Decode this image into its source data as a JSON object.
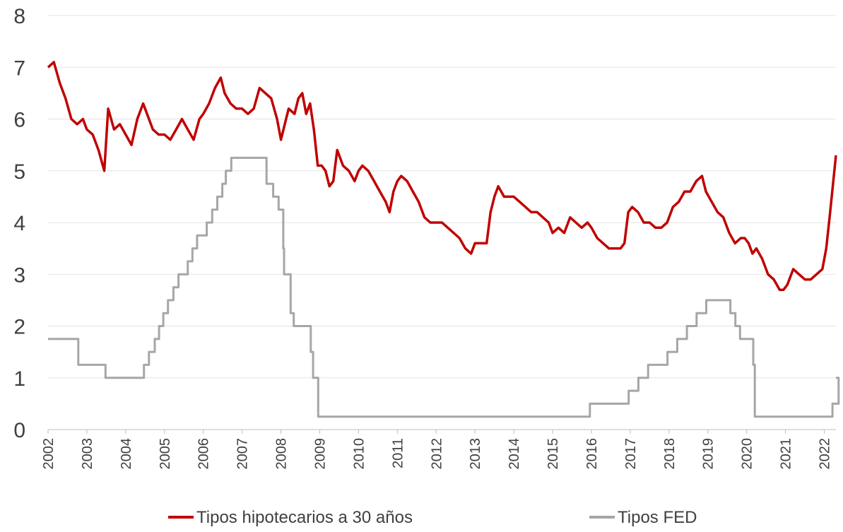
{
  "chart_data": {
    "type": "line",
    "title": "",
    "xlabel": "",
    "ylabel": "",
    "ylim": [
      0,
      8
    ],
    "yticks": [
      "0",
      "1",
      "2",
      "3",
      "4",
      "5",
      "6",
      "7",
      "8"
    ],
    "xlim": [
      2002,
      2022.3
    ],
    "xticks": [
      "2002",
      "2003",
      "2004",
      "2005",
      "2006",
      "2007",
      "2008",
      "2009",
      "2010",
      "2011",
      "2012",
      "2013",
      "2014",
      "2015",
      "2016",
      "2017",
      "2018",
      "2019",
      "2020",
      "2021",
      "2022"
    ],
    "grid": "horizontal",
    "legend": "bottom",
    "series": [
      {
        "name": "Tipos hipotecarios a  30 años",
        "color": "#c00000",
        "points": [
          [
            2002.0,
            7.0
          ],
          [
            2002.15,
            7.1
          ],
          [
            2002.3,
            6.7
          ],
          [
            2002.45,
            6.4
          ],
          [
            2002.6,
            6.0
          ],
          [
            2002.75,
            5.9
          ],
          [
            2002.9,
            6.0
          ],
          [
            2003.0,
            5.8
          ],
          [
            2003.15,
            5.7
          ],
          [
            2003.3,
            5.4
          ],
          [
            2003.45,
            5.0
          ],
          [
            2003.55,
            6.2
          ],
          [
            2003.7,
            5.8
          ],
          [
            2003.85,
            5.9
          ],
          [
            2004.0,
            5.7
          ],
          [
            2004.15,
            5.5
          ],
          [
            2004.3,
            6.0
          ],
          [
            2004.45,
            6.3
          ],
          [
            2004.55,
            6.1
          ],
          [
            2004.7,
            5.8
          ],
          [
            2004.85,
            5.7
          ],
          [
            2005.0,
            5.7
          ],
          [
            2005.15,
            5.6
          ],
          [
            2005.3,
            5.8
          ],
          [
            2005.45,
            6.0
          ],
          [
            2005.6,
            5.8
          ],
          [
            2005.75,
            5.6
          ],
          [
            2005.9,
            6.0
          ],
          [
            2006.0,
            6.1
          ],
          [
            2006.15,
            6.3
          ],
          [
            2006.3,
            6.6
          ],
          [
            2006.45,
            6.8
          ],
          [
            2006.55,
            6.5
          ],
          [
            2006.7,
            6.3
          ],
          [
            2006.85,
            6.2
          ],
          [
            2007.0,
            6.2
          ],
          [
            2007.15,
            6.1
          ],
          [
            2007.3,
            6.2
          ],
          [
            2007.45,
            6.6
          ],
          [
            2007.6,
            6.5
          ],
          [
            2007.75,
            6.4
          ],
          [
            2007.9,
            6.0
          ],
          [
            2008.0,
            5.6
          ],
          [
            2008.1,
            5.9
          ],
          [
            2008.2,
            6.2
          ],
          [
            2008.35,
            6.1
          ],
          [
            2008.45,
            6.4
          ],
          [
            2008.55,
            6.5
          ],
          [
            2008.65,
            6.1
          ],
          [
            2008.75,
            6.3
          ],
          [
            2008.85,
            5.8
          ],
          [
            2008.95,
            5.1
          ],
          [
            2009.05,
            5.1
          ],
          [
            2009.15,
            5.0
          ],
          [
            2009.25,
            4.7
          ],
          [
            2009.35,
            4.8
          ],
          [
            2009.45,
            5.4
          ],
          [
            2009.6,
            5.1
          ],
          [
            2009.75,
            5.0
          ],
          [
            2009.9,
            4.8
          ],
          [
            2010.0,
            5.0
          ],
          [
            2010.1,
            5.1
          ],
          [
            2010.25,
            5.0
          ],
          [
            2010.4,
            4.8
          ],
          [
            2010.55,
            4.6
          ],
          [
            2010.7,
            4.4
          ],
          [
            2010.8,
            4.2
          ],
          [
            2010.9,
            4.6
          ],
          [
            2011.0,
            4.8
          ],
          [
            2011.1,
            4.9
          ],
          [
            2011.25,
            4.8
          ],
          [
            2011.4,
            4.6
          ],
          [
            2011.55,
            4.4
          ],
          [
            2011.7,
            4.1
          ],
          [
            2011.85,
            4.0
          ],
          [
            2012.0,
            4.0
          ],
          [
            2012.15,
            4.0
          ],
          [
            2012.3,
            3.9
          ],
          [
            2012.45,
            3.8
          ],
          [
            2012.6,
            3.7
          ],
          [
            2012.75,
            3.5
          ],
          [
            2012.9,
            3.4
          ],
          [
            2013.0,
            3.6
          ],
          [
            2013.15,
            3.6
          ],
          [
            2013.3,
            3.6
          ],
          [
            2013.4,
            4.2
          ],
          [
            2013.5,
            4.5
          ],
          [
            2013.6,
            4.7
          ],
          [
            2013.75,
            4.5
          ],
          [
            2013.9,
            4.5
          ],
          [
            2014.0,
            4.5
          ],
          [
            2014.15,
            4.4
          ],
          [
            2014.3,
            4.3
          ],
          [
            2014.45,
            4.2
          ],
          [
            2014.6,
            4.2
          ],
          [
            2014.75,
            4.1
          ],
          [
            2014.9,
            4.0
          ],
          [
            2015.0,
            3.8
          ],
          [
            2015.15,
            3.9
          ],
          [
            2015.3,
            3.8
          ],
          [
            2015.45,
            4.1
          ],
          [
            2015.6,
            4.0
          ],
          [
            2015.75,
            3.9
          ],
          [
            2015.9,
            4.0
          ],
          [
            2016.0,
            3.9
          ],
          [
            2016.15,
            3.7
          ],
          [
            2016.3,
            3.6
          ],
          [
            2016.45,
            3.5
          ],
          [
            2016.6,
            3.5
          ],
          [
            2016.75,
            3.5
          ],
          [
            2016.85,
            3.6
          ],
          [
            2016.95,
            4.2
          ],
          [
            2017.05,
            4.3
          ],
          [
            2017.2,
            4.2
          ],
          [
            2017.35,
            4.0
          ],
          [
            2017.5,
            4.0
          ],
          [
            2017.65,
            3.9
          ],
          [
            2017.8,
            3.9
          ],
          [
            2017.95,
            4.0
          ],
          [
            2018.1,
            4.3
          ],
          [
            2018.25,
            4.4
          ],
          [
            2018.4,
            4.6
          ],
          [
            2018.55,
            4.6
          ],
          [
            2018.7,
            4.8
          ],
          [
            2018.85,
            4.9
          ],
          [
            2018.95,
            4.6
          ],
          [
            2019.1,
            4.4
          ],
          [
            2019.25,
            4.2
          ],
          [
            2019.4,
            4.1
          ],
          [
            2019.55,
            3.8
          ],
          [
            2019.7,
            3.6
          ],
          [
            2019.85,
            3.7
          ],
          [
            2019.95,
            3.7
          ],
          [
            2020.05,
            3.6
          ],
          [
            2020.15,
            3.4
          ],
          [
            2020.25,
            3.5
          ],
          [
            2020.4,
            3.3
          ],
          [
            2020.55,
            3.0
          ],
          [
            2020.7,
            2.9
          ],
          [
            2020.85,
            2.7
          ],
          [
            2020.95,
            2.7
          ],
          [
            2021.05,
            2.8
          ],
          [
            2021.2,
            3.1
          ],
          [
            2021.35,
            3.0
          ],
          [
            2021.5,
            2.9
          ],
          [
            2021.65,
            2.9
          ],
          [
            2021.8,
            3.0
          ],
          [
            2021.95,
            3.1
          ],
          [
            2022.05,
            3.5
          ],
          [
            2022.15,
            4.2
          ],
          [
            2022.3,
            5.3
          ]
        ]
      },
      {
        "name": "Tipos FED",
        "color": "#a6a6a6",
        "step": true,
        "points": [
          [
            2002.0,
            1.75
          ],
          [
            2002.78,
            1.25
          ],
          [
            2003.48,
            1.0
          ],
          [
            2004.47,
            1.25
          ],
          [
            2004.6,
            1.5
          ],
          [
            2004.75,
            1.75
          ],
          [
            2004.86,
            2.0
          ],
          [
            2004.97,
            2.25
          ],
          [
            2005.09,
            2.5
          ],
          [
            2005.23,
            2.75
          ],
          [
            2005.36,
            3.0
          ],
          [
            2005.6,
            3.25
          ],
          [
            2005.72,
            3.5
          ],
          [
            2005.84,
            3.75
          ],
          [
            2006.09,
            4.0
          ],
          [
            2006.23,
            4.25
          ],
          [
            2006.36,
            4.5
          ],
          [
            2006.49,
            4.75
          ],
          [
            2006.58,
            5.0
          ],
          [
            2006.72,
            5.25
          ],
          [
            2007.63,
            4.75
          ],
          [
            2007.8,
            4.5
          ],
          [
            2007.94,
            4.25
          ],
          [
            2008.06,
            3.5
          ],
          [
            2008.08,
            3.0
          ],
          [
            2008.25,
            2.25
          ],
          [
            2008.33,
            2.0
          ],
          [
            2008.77,
            1.5
          ],
          [
            2008.83,
            1.0
          ],
          [
            2008.96,
            0.25
          ],
          [
            2015.96,
            0.5
          ],
          [
            2016.96,
            0.75
          ],
          [
            2017.21,
            1.0
          ],
          [
            2017.46,
            1.25
          ],
          [
            2017.96,
            1.5
          ],
          [
            2018.21,
            1.75
          ],
          [
            2018.46,
            2.0
          ],
          [
            2018.71,
            2.25
          ],
          [
            2018.96,
            2.5
          ],
          [
            2019.58,
            2.25
          ],
          [
            2019.71,
            2.0
          ],
          [
            2019.83,
            1.75
          ],
          [
            2020.17,
            1.25
          ],
          [
            2020.21,
            0.25
          ],
          [
            2022.21,
            0.5
          ],
          [
            2022.37,
            1.0
          ]
        ]
      }
    ]
  }
}
